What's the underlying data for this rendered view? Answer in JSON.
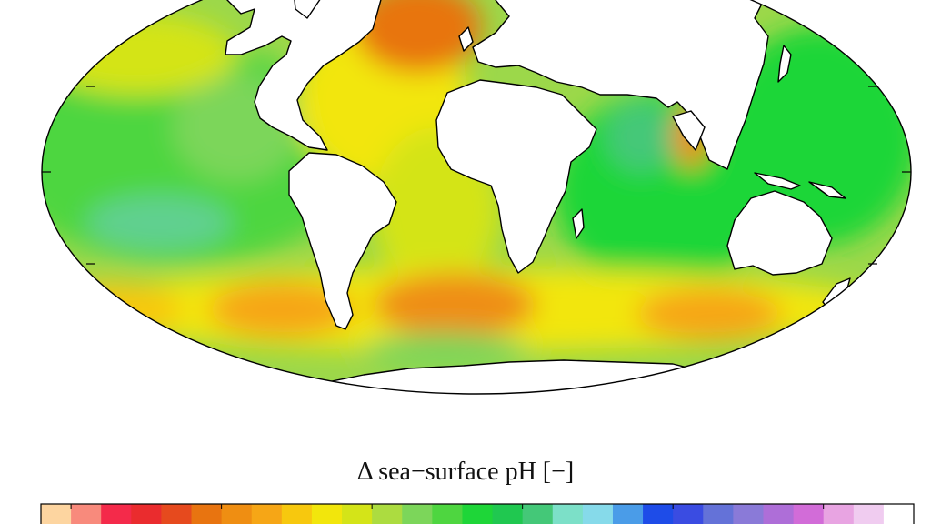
{
  "map": {
    "projection": "mollweide",
    "variable": "delta-sea-surface-pH",
    "land_color": "#ffffff",
    "coastline_color": "#000000"
  },
  "legend": {
    "title": "Δ sea−surface pH [−]",
    "colors": [
      "#fdd5a0",
      "#f88a7c",
      "#f42a4a",
      "#ea2c2e",
      "#e64a1e",
      "#e87410",
      "#ef8e12",
      "#f6a616",
      "#f7c80e",
      "#f2e60c",
      "#d4e418",
      "#acdc40",
      "#7cd65a",
      "#4ed640",
      "#1ed638",
      "#20c850",
      "#44c878",
      "#7ce0c8",
      "#86daea",
      "#4a9ce8",
      "#1e4ce8",
      "#3a4ce2",
      "#6472d8",
      "#8a7ad8",
      "#ae6ed8",
      "#d26cd8",
      "#e8a4e2",
      "#f0ccf0",
      "#ffffff"
    ]
  }
}
